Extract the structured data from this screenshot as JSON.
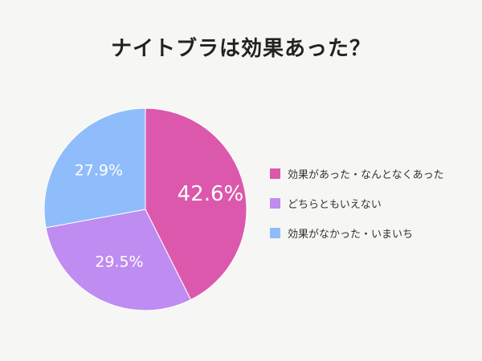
{
  "chart_data": {
    "type": "pie",
    "title": "ナイトブラは効果あった？",
    "categories": [
      "効果があった・なんとなくあった",
      "どちらともいえない",
      "効果がなかった・いまいち"
    ],
    "values": [
      42.6,
      29.5,
      27.9
    ],
    "value_labels": [
      "42.6%",
      "29.5%",
      "27.9%"
    ],
    "colors": [
      "#dc58ac",
      "#bf8cf2",
      "#8fbdfc"
    ],
    "start_angle": "12 o'clock",
    "direction": "clockwise",
    "legend_position": "right"
  }
}
